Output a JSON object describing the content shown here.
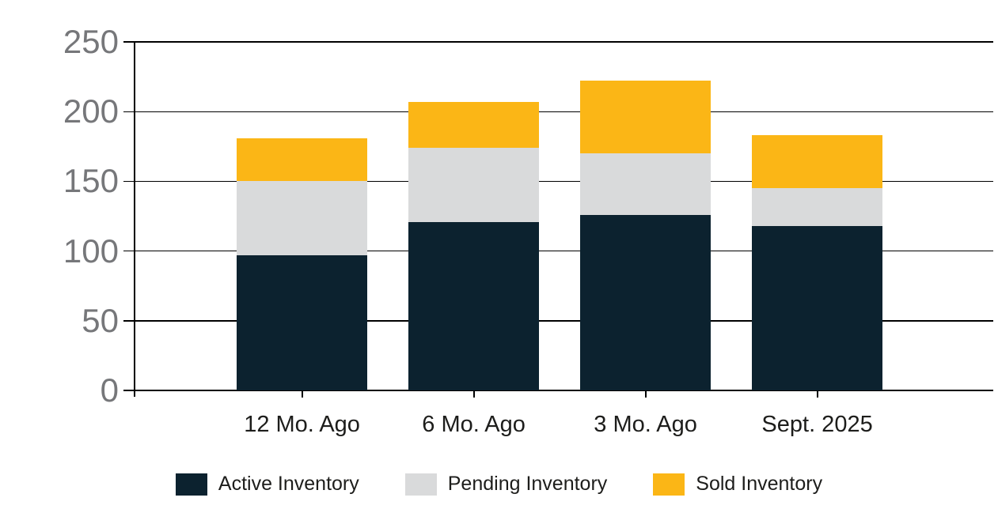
{
  "chart_data": {
    "type": "bar",
    "stacked": true,
    "categories": [
      "12 Mo. Ago",
      "6 Mo. Ago",
      "3 Mo. Ago",
      "Sept. 2025"
    ],
    "series": [
      {
        "name": "Active Inventory",
        "color": "#0c222f",
        "values": [
          97,
          121,
          126,
          118
        ]
      },
      {
        "name": "Pending Inventory",
        "color": "#d9dadb",
        "values": [
          53,
          53,
          44,
          27
        ]
      },
      {
        "name": "Sold Inventory",
        "color": "#fbb616",
        "values": [
          31,
          33,
          52,
          38
        ]
      }
    ],
    "stack_totals": [
      181,
      207,
      222,
      183
    ],
    "y_ticks": [
      0,
      50,
      100,
      150,
      200,
      250
    ],
    "y_tick_labels": [
      "0",
      "50",
      "100",
      "150",
      "200",
      "250"
    ],
    "ylim": [
      0,
      250
    ],
    "title": "",
    "xlabel": "",
    "ylabel": "",
    "grid": true,
    "legend_position": "bottom"
  },
  "colors": {
    "background": "#ffffff",
    "gridline": "#000000",
    "y_tick_text": "#76777a",
    "x_tick_text": "#1d1d1b",
    "legend_text": "#1d1d1b"
  }
}
